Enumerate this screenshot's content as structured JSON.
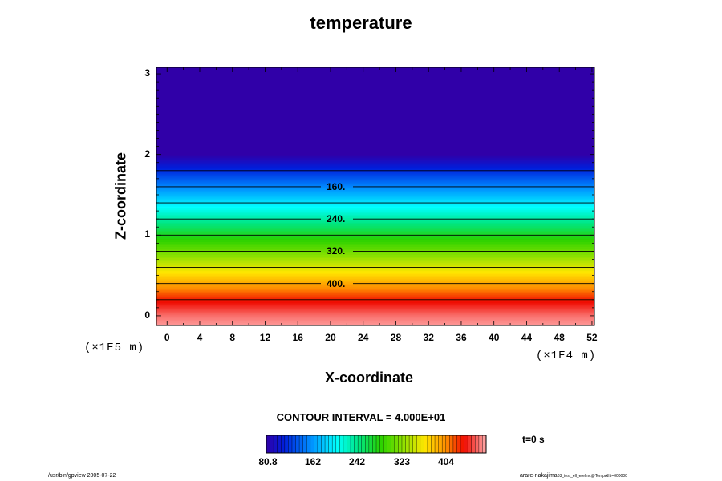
{
  "chart_data": {
    "type": "heatmap",
    "title": "temperature",
    "xlabel": "X-coordinate",
    "ylabel": "Z-coordinate",
    "x_unit": "(×1E4 m)",
    "y_unit": "(×1E5 m)",
    "xlim": [
      -1.3,
      52.3
    ],
    "ylim": [
      -0.12,
      3.08
    ],
    "x_ticks": [
      "0",
      "4",
      "8",
      "12",
      "16",
      "20",
      "24",
      "28",
      "32",
      "36",
      "40",
      "44",
      "48",
      "52"
    ],
    "y_ticks": [
      "0",
      "1",
      "2",
      "3"
    ],
    "temperature_profile": {
      "description_free": true,
      "z": [
        -0.12,
        0.0,
        0.2,
        0.4,
        0.6,
        0.8,
        1.0,
        1.2,
        1.4,
        1.6,
        1.8,
        2.0,
        3.08
      ],
      "t": [
        480,
        470,
        440,
        400,
        360,
        320,
        280,
        240,
        200,
        160,
        120,
        80.8,
        80.8
      ]
    },
    "contours": [
      {
        "value": 160,
        "z": 1.6,
        "label": "160."
      },
      {
        "value": 240,
        "z": 1.2,
        "label": "240."
      },
      {
        "value": 320,
        "z": 0.8,
        "label": "320."
      },
      {
        "value": 400,
        "z": 0.4,
        "label": "400."
      }
    ],
    "unlabeled_contours": [
      1.8,
      1.4,
      1.0,
      0.6,
      0.2
    ],
    "contour_interval_text": "CONTOUR INTERVAL = 4.000E+01",
    "colorbar": {
      "range": [
        80.8,
        484
      ],
      "tick_labels": [
        "80.8",
        "162",
        "242",
        "323",
        "404"
      ]
    },
    "time_label": "t=0 s"
  },
  "footer": {
    "left": "/usr/bin/gpview 2005-07-22",
    "right": "arare-nakajima",
    "right_small": "03_test_ell_erel.nc@TempAll,t=000000"
  },
  "colors": {
    "plot_frame": "#000000",
    "contour_line": "#000000"
  }
}
